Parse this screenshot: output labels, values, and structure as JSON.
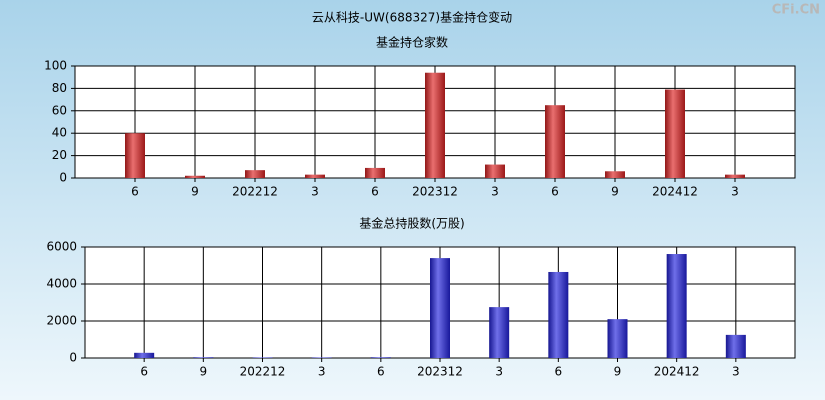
{
  "title": "云从科技-UW(688327)基金持仓变动",
  "watermark": "CFi.CN",
  "chart_data": [
    {
      "type": "bar",
      "title": "基金持仓家数",
      "categories": [
        "6",
        "9",
        "202212",
        "3",
        "6",
        "202312",
        "3",
        "6",
        "9",
        "202412",
        "3"
      ],
      "values": [
        40,
        2,
        7,
        3,
        9,
        94,
        12,
        65,
        6,
        79,
        3
      ],
      "color": "#dd2222",
      "ylim": [
        0,
        100
      ],
      "yticks": [
        0,
        20,
        40,
        60,
        80,
        100
      ],
      "grid": true
    },
    {
      "type": "bar",
      "title": "基金总持股数(万股)",
      "categories": [
        "6",
        "9",
        "202212",
        "3",
        "6",
        "202312",
        "3",
        "6",
        "9",
        "202412",
        "3"
      ],
      "values": [
        280,
        40,
        30,
        30,
        40,
        5400,
        2750,
        4650,
        2100,
        5620,
        1250
      ],
      "color": "#2222dd",
      "ylim": [
        0,
        6000
      ],
      "yticks": [
        0,
        2000,
        4000,
        6000
      ],
      "grid": true
    }
  ]
}
